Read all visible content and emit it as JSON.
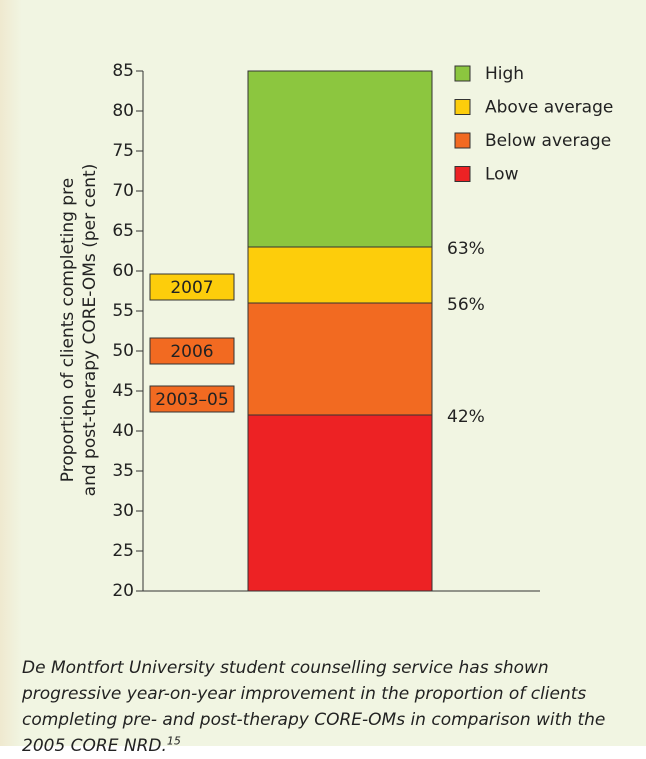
{
  "chart_data": {
    "type": "band",
    "y_label": [
      "Proportion of clients completing pre",
      "and post-therapy CORE-OMs (per cent)"
    ],
    "ylim": [
      20,
      85
    ],
    "yticks": [
      20,
      25,
      30,
      35,
      40,
      45,
      50,
      55,
      60,
      65,
      70,
      75,
      80,
      85
    ],
    "series": [
      {
        "name": "Low",
        "color": "#ed2224",
        "values": [
          42
        ],
        "value_labels": [
          "42%"
        ]
      },
      {
        "name": "Below average",
        "color": "#f26a21",
        "values": [
          56
        ],
        "value_labels": [
          "56%"
        ]
      },
      {
        "name": "Above average",
        "color": "#fdcd0b",
        "values": [
          63
        ],
        "value_labels": [
          "63%"
        ]
      },
      {
        "name": "High",
        "color": "#8cc63f",
        "values": [
          85
        ]
      }
    ],
    "annotations": [
      {
        "label": "2007",
        "value": 58,
        "color": "#fdcd0b"
      },
      {
        "label": "2006",
        "value": 50,
        "color": "#f26a21"
      },
      {
        "label": "2003–05",
        "value": 44,
        "color": "#f26a21"
      }
    ]
  },
  "caption": "De Montfort University student counselling service has shown progressive year-on-year improvement in the proportion of clients completing pre- and post-therapy CORE-OMs in comparison with the 2005 CORE NRD.",
  "caption_ref": "15"
}
